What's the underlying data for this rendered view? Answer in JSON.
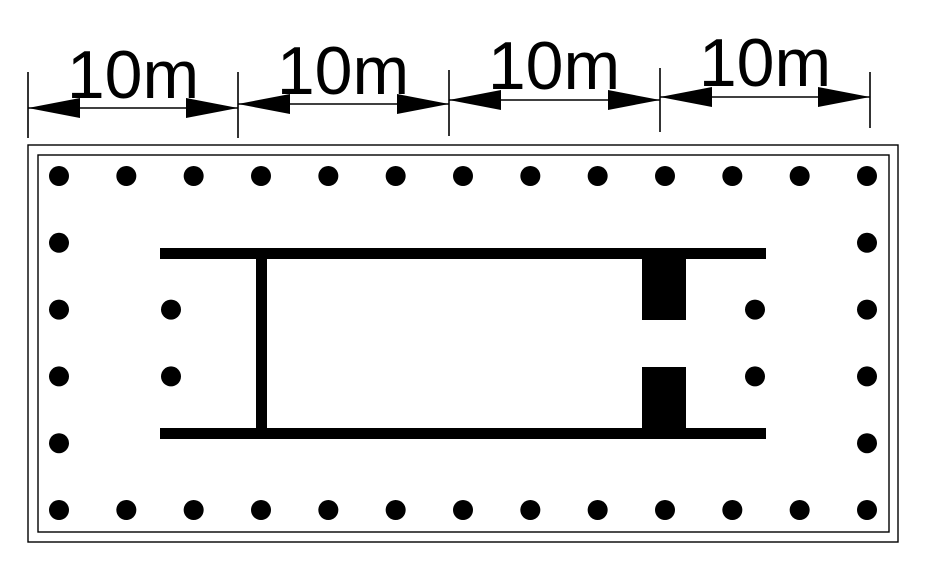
{
  "dimensions": {
    "labels": [
      "10m",
      "10m",
      "10m",
      "10m"
    ]
  },
  "columns": {
    "front_row_count": 13,
    "back_row_count": 13,
    "side_count_each": 4,
    "inner_porch_columns_each": 2
  },
  "colors": {
    "ink": "#000000",
    "background": "#ffffff"
  }
}
